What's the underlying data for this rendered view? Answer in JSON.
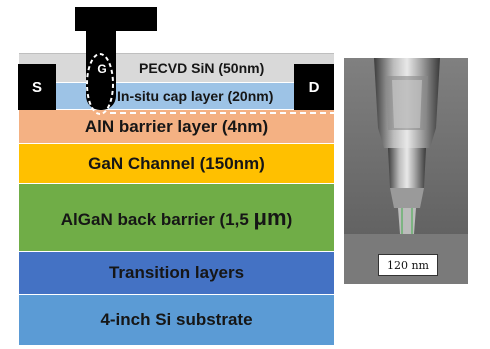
{
  "colors": {
    "pecvd": "#d9d9d9",
    "cap": "#9dc3e6",
    "aln": "#f4b183",
    "gan": "#ffc000",
    "algan": "#70ad47",
    "transition": "#4472c4",
    "substrate": "#5b9bd5",
    "contact": "#000000"
  },
  "layers": {
    "pecvd": "PECVD SiN (50nm)",
    "cap": "In-situ cap layer (20nm)",
    "aln": "AlN barrier layer (4nm)",
    "gan": "GaN Channel (150nm)",
    "algan_prefix": "AlGaN back barrier (1,5 ",
    "algan_unit": "μm",
    "algan_suffix": ")",
    "transition": "Transition layers",
    "substrate": "4-inch Si substrate"
  },
  "contacts": {
    "source": "S",
    "drain": "D",
    "gate": "G"
  },
  "micrograph": {
    "scale_label": "120 nm"
  }
}
